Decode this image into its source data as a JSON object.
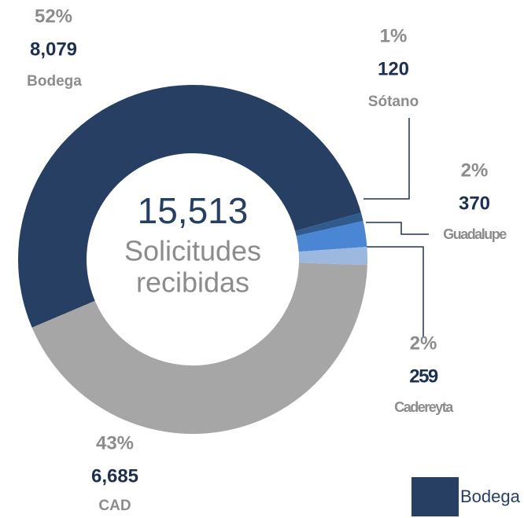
{
  "chart_data": {
    "type": "donut",
    "categories": [
      "Bodega",
      "Sótano",
      "Guadalupe",
      "Cadereyta",
      "CAD"
    ],
    "values": [
      8079,
      120,
      370,
      259,
      6685
    ],
    "value_labels": [
      "8,079",
      "120",
      "370",
      "259",
      "6,685"
    ],
    "percent_labels": [
      "52%",
      "1%",
      "2%",
      "2%",
      "43%"
    ],
    "colors": [
      "#263f63",
      "#2f5b8e",
      "#4a86d4",
      "#9db8de",
      "#a6a6a6"
    ],
    "center_label": "15,513",
    "center_text": [
      "Solicitudes",
      "recibidas"
    ]
  }
}
